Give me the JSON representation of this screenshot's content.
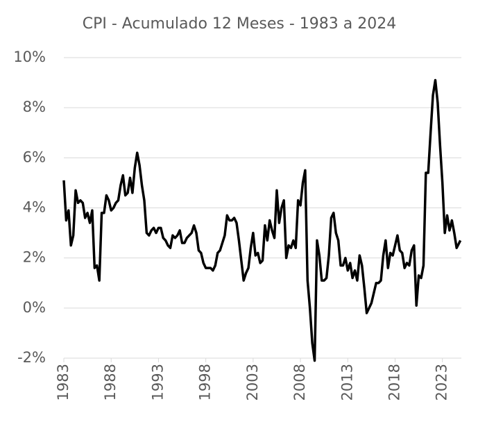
{
  "chart_data": {
    "type": "line",
    "title": "CPI - Acumulado 12 Meses - 1983 a 2024",
    "x": [
      1983,
      1983.25,
      1983.5,
      1983.75,
      1984,
      1984.25,
      1984.5,
      1984.75,
      1985,
      1985.25,
      1985.5,
      1985.75,
      1986,
      1986.25,
      1986.5,
      1986.75,
      1987,
      1987.25,
      1987.5,
      1987.75,
      1988,
      1988.25,
      1988.5,
      1988.75,
      1989,
      1989.25,
      1989.5,
      1989.75,
      1990,
      1990.25,
      1990.5,
      1990.75,
      1991,
      1991.25,
      1991.5,
      1991.75,
      1992,
      1992.25,
      1992.5,
      1992.75,
      1993,
      1993.25,
      1993.5,
      1993.75,
      1994,
      1994.25,
      1994.5,
      1994.75,
      1995,
      1995.25,
      1995.5,
      1995.75,
      1996,
      1996.25,
      1996.5,
      1996.75,
      1997,
      1997.25,
      1997.5,
      1997.75,
      1998,
      1998.25,
      1998.5,
      1998.75,
      1999,
      1999.25,
      1999.5,
      1999.75,
      2000,
      2000.25,
      2000.5,
      2000.75,
      2001,
      2001.25,
      2001.5,
      2001.75,
      2002,
      2002.25,
      2002.5,
      2002.75,
      2003,
      2003.25,
      2003.5,
      2003.75,
      2004,
      2004.25,
      2004.5,
      2004.75,
      2005,
      2005.25,
      2005.5,
      2005.75,
      2006,
      2006.25,
      2006.5,
      2006.75,
      2007,
      2007.25,
      2007.5,
      2007.75,
      2008,
      2008.25,
      2008.5,
      2008.75,
      2009,
      2009.25,
      2009.5,
      2009.75,
      2010,
      2010.25,
      2010.5,
      2010.75,
      2011,
      2011.25,
      2011.5,
      2011.75,
      2012,
      2012.25,
      2012.5,
      2012.75,
      2013,
      2013.25,
      2013.5,
      2013.75,
      2014,
      2014.25,
      2014.5,
      2014.75,
      2015,
      2015.25,
      2015.5,
      2015.75,
      2016,
      2016.25,
      2016.5,
      2016.75,
      2017,
      2017.25,
      2017.5,
      2017.75,
      2018,
      2018.25,
      2018.5,
      2018.75,
      2019,
      2019.25,
      2019.5,
      2019.75,
      2020,
      2020.25,
      2020.5,
      2020.75,
      2021,
      2021.25,
      2021.5,
      2021.75,
      2022,
      2022.25,
      2022.5,
      2022.75,
      2023,
      2023.25,
      2023.5,
      2023.75,
      2024,
      2024.25,
      2024.5,
      2024.9
    ],
    "values": [
      5.1,
      3.5,
      3.9,
      2.5,
      2.9,
      4.7,
      4.2,
      4.3,
      4.2,
      3.6,
      3.8,
      3.4,
      3.9,
      1.6,
      1.7,
      1.1,
      3.8,
      3.8,
      4.5,
      4.3,
      3.9,
      4.0,
      4.2,
      4.3,
      4.9,
      5.3,
      4.5,
      4.6,
      5.2,
      4.6,
      5.6,
      6.2,
      5.7,
      4.9,
      4.3,
      3.0,
      2.9,
      3.1,
      3.2,
      3.0,
      3.2,
      3.2,
      2.8,
      2.7,
      2.5,
      2.4,
      2.9,
      2.8,
      2.9,
      3.1,
      2.6,
      2.6,
      2.8,
      2.9,
      3.0,
      3.3,
      3.0,
      2.3,
      2.2,
      1.8,
      1.6,
      1.6,
      1.6,
      1.5,
      1.7,
      2.2,
      2.3,
      2.6,
      2.9,
      3.7,
      3.5,
      3.5,
      3.6,
      3.4,
      2.7,
      1.9,
      1.1,
      1.4,
      1.6,
      2.4,
      3.0,
      2.1,
      2.2,
      1.8,
      1.9,
      3.3,
      2.7,
      3.5,
      3.1,
      2.8,
      4.7,
      3.4,
      4.0,
      4.3,
      2.0,
      2.5,
      2.4,
      2.7,
      2.4,
      4.3,
      4.1,
      5.0,
      5.5,
      1.1,
      0.0,
      -1.4,
      -2.1,
      2.7,
      2.1,
      1.1,
      1.1,
      1.2,
      2.1,
      3.6,
      3.8,
      3.0,
      2.7,
      1.7,
      1.7,
      2.0,
      1.5,
      1.8,
      1.2,
      1.5,
      1.1,
      2.1,
      1.7,
      0.8,
      -0.2,
      0.0,
      0.2,
      0.6,
      1.0,
      1.0,
      1.1,
      2.1,
      2.7,
      1.6,
      2.2,
      2.1,
      2.5,
      2.9,
      2.3,
      2.2,
      1.6,
      1.8,
      1.7,
      2.3,
      2.5,
      0.1,
      1.3,
      1.2,
      1.7,
      5.4,
      5.4,
      7.0,
      8.5,
      9.1,
      8.2,
      6.5,
      5.0,
      3.0,
      3.7,
      3.1,
      3.5,
      3.0,
      2.4,
      2.7
    ],
    "color": "#000000",
    "xlim": [
      1983,
      2025
    ],
    "xticks": [
      1983,
      1988,
      1993,
      1998,
      2003,
      2008,
      2013,
      2018,
      2023
    ],
    "ylim": [
      -2,
      10
    ],
    "yticks": [
      {
        "value": -2,
        "label": "-2%"
      },
      {
        "value": 0,
        "label": "0%"
      },
      {
        "value": 2,
        "label": "2%"
      },
      {
        "value": 4,
        "label": "4%"
      },
      {
        "value": 6,
        "label": "6%"
      },
      {
        "value": 8,
        "label": "8%"
      },
      {
        "value": 10,
        "label": "10%"
      }
    ],
    "grid": true
  }
}
